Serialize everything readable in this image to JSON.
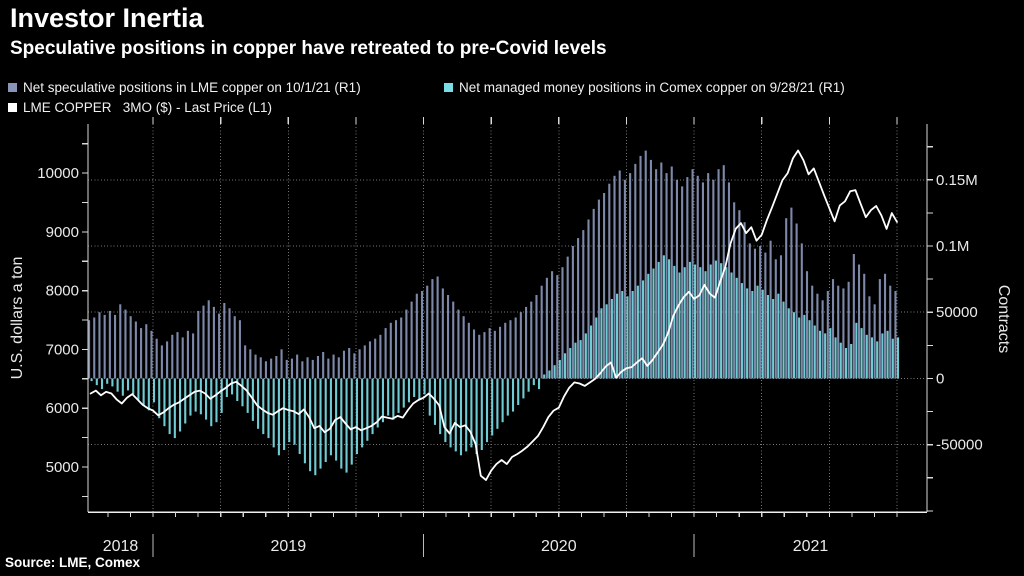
{
  "chart_data": {
    "type": "bar+line",
    "title": "Investor Inertia",
    "subtitle": "Speculative positions in copper have retreated to pre-Covid levels",
    "source": "Source: LME, Comex",
    "colors": {
      "background": "#000000",
      "grid": "#787878",
      "axis": "#d9d9d9",
      "tick_text": "#eaeaea"
    },
    "x_axis": {
      "interval": "weekly",
      "start": "2018-10",
      "end": "2021-10",
      "months_total": 36,
      "years": [
        {
          "label": "2018",
          "start_week": 0
        },
        {
          "label": "2019",
          "start_week": 13
        },
        {
          "label": "2020",
          "start_week": 65
        },
        {
          "label": "2021",
          "start_week": 117
        }
      ]
    },
    "left_axis": {
      "title": "U.S. dollars a ton",
      "tick_labels": [
        10000,
        9000,
        8000,
        7000,
        6000,
        5000
      ],
      "minor_tick_step": 500,
      "range_top": 10835,
      "range_bottom": 4235
    },
    "right_axis": {
      "title": "Contracts",
      "ticks": [
        {
          "value": 150000,
          "label": "0.15M"
        },
        {
          "value": 100000,
          "label": "0.1M"
        },
        {
          "value": 50000,
          "label": "50000"
        },
        {
          "value": 0,
          "label": "0"
        },
        {
          "value": -50000,
          "label": "-50000"
        }
      ],
      "minor_tick_step": 25000,
      "range_top": 192100,
      "range_bottom": -100800
    },
    "series": [
      {
        "label": "Net speculative positions in LME copper on 10/1/21 (R1)",
        "type": "bar",
        "axis": "right",
        "color": "#8995b8",
        "values_unit": "thousand contracts",
        "values": [
          44,
          46,
          50,
          48,
          51,
          48,
          56,
          52,
          47,
          43,
          38,
          41,
          36,
          30,
          25,
          28,
          33,
          35,
          31,
          36,
          34,
          51,
          55,
          59,
          54,
          49,
          57,
          53,
          47,
          44,
          25,
          22,
          18,
          16,
          13,
          15,
          17,
          22,
          14,
          15,
          18,
          13,
          16,
          14,
          17,
          20,
          15,
          18,
          16,
          21,
          23,
          19,
          22,
          25,
          28,
          30,
          33,
          38,
          42,
          44,
          46,
          52,
          58,
          64,
          66,
          70,
          75,
          77,
          68,
          63,
          58,
          52,
          47,
          42,
          37,
          33,
          35,
          38,
          36,
          39,
          42,
          44,
          46,
          50,
          54,
          58,
          63,
          70,
          76,
          81,
          78,
          84,
          92,
          100,
          106,
          112,
          120,
          128,
          135,
          140,
          147,
          153,
          157,
          150,
          155,
          162,
          168,
          172,
          165,
          158,
          163,
          155,
          160,
          150,
          145,
          152,
          158,
          153,
          148,
          155,
          150,
          158,
          161,
          148,
          133,
          127,
          118,
          102,
          98,
          100,
          95,
          104,
          90,
          93,
          121,
          129,
          117,
          102,
          81,
          70,
          64,
          59,
          66,
          75,
          70,
          68,
          73,
          94,
          86,
          79,
          62,
          56,
          75,
          79,
          70,
          66
        ]
      },
      {
        "label": "Net managed money positions in Comex copper on 9/28/21 (R1)",
        "type": "bar",
        "axis": "right",
        "color": "#79dde6",
        "values_unit": "thousand contracts",
        "values": [
          -2,
          -5,
          -8,
          -4,
          -6,
          -10,
          -13,
          -9,
          -12,
          -16,
          -20,
          -24,
          -18,
          -30,
          -36,
          -42,
          -45,
          -40,
          -34,
          -28,
          -25,
          -27,
          -31,
          -36,
          -33,
          -26,
          -14,
          -12,
          -17,
          -21,
          -26,
          -32,
          -38,
          -42,
          -45,
          -52,
          -58,
          -54,
          -48,
          -50,
          -57,
          -64,
          -70,
          -73,
          -68,
          -63,
          -58,
          -62,
          -68,
          -71,
          -65,
          -57,
          -52,
          -47,
          -42,
          -37,
          -33,
          -28,
          -31,
          -26,
          -22,
          -18,
          -14,
          -16,
          -12,
          -28,
          -35,
          -42,
          -48,
          -52,
          -55,
          -58,
          -55,
          -52,
          -57,
          -54,
          -48,
          -43,
          -38,
          -33,
          -28,
          -25,
          -20,
          -15,
          -10,
          -5,
          -8,
          3,
          6,
          10,
          14,
          19,
          23,
          27,
          29,
          34,
          40,
          46,
          53,
          56,
          60,
          64,
          66,
          62,
          66,
          70,
          74,
          79,
          83,
          88,
          93,
          90,
          85,
          80,
          84,
          88,
          86,
          84,
          81,
          86,
          89,
          87,
          84,
          80,
          76,
          72,
          68,
          66,
          70,
          67,
          63,
          60,
          64,
          58,
          53,
          50,
          46,
          48,
          44,
          40,
          36,
          34,
          38,
          31,
          27,
          23,
          26,
          42,
          38,
          33,
          31,
          28,
          34,
          36,
          30,
          31
        ]
      },
      {
        "label": "LME COPPER   3MO ($) - Last Price (L1)",
        "type": "line",
        "axis": "left",
        "color": "#ffffff",
        "values_unit": "USD per ton",
        "values": [
          6250,
          6300,
          6220,
          6280,
          6250,
          6150,
          6080,
          6180,
          6240,
          6150,
          6060,
          6000,
          5960,
          5880,
          5930,
          6000,
          6060,
          6100,
          6160,
          6220,
          6280,
          6300,
          6250,
          6160,
          6220,
          6290,
          6350,
          6420,
          6450,
          6380,
          6300,
          6180,
          6050,
          5980,
          5920,
          5890,
          5950,
          6000,
          5970,
          5950,
          5900,
          5980,
          5850,
          5660,
          5700,
          5590,
          5650,
          5800,
          5850,
          5740,
          5640,
          5680,
          5625,
          5660,
          5700,
          5760,
          5860,
          5840,
          5820,
          5870,
          5840,
          5970,
          6080,
          6140,
          6180,
          6250,
          6160,
          6050,
          5680,
          5570,
          5750,
          5680,
          5710,
          5600,
          5390,
          4850,
          4780,
          4940,
          5050,
          5120,
          5050,
          5170,
          5220,
          5280,
          5350,
          5440,
          5530,
          5680,
          5850,
          5960,
          6010,
          6200,
          6350,
          6440,
          6420,
          6380,
          6440,
          6500,
          6600,
          6710,
          6780,
          6520,
          6620,
          6680,
          6700,
          6780,
          6850,
          6720,
          6820,
          6950,
          7080,
          7280,
          7570,
          7750,
          7890,
          7980,
          7860,
          7920,
          8100,
          7950,
          7880,
          8150,
          8400,
          8800,
          9050,
          9150,
          8980,
          9080,
          8850,
          8950,
          9200,
          9420,
          9650,
          9880,
          10000,
          10250,
          10385,
          10220,
          9980,
          10080,
          9850,
          9620,
          9400,
          9180,
          9450,
          9520,
          9690,
          9710,
          9480,
          9250,
          9370,
          9440,
          9280,
          9050,
          9320,
          9170
        ]
      }
    ]
  }
}
